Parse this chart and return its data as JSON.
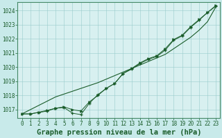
{
  "title": "Graphe pression niveau de la mer (hPa)",
  "background_color": "#c8eaea",
  "plot_bg_color": "#d8f0f0",
  "grid_color": "#98cccc",
  "line_color": "#1a5c2a",
  "x_labels": [
    "0",
    "1",
    "2",
    "3",
    "4",
    "5",
    "6",
    "7",
    "8",
    "9",
    "10",
    "11",
    "12",
    "13",
    "14",
    "15",
    "16",
    "17",
    "18",
    "19",
    "20",
    "21",
    "22",
    "23"
  ],
  "ylim": [
    1016.4,
    1024.6
  ],
  "yticks": [
    1017,
    1018,
    1019,
    1020,
    1021,
    1022,
    1023,
    1024
  ],
  "series_plus": [
    1016.7,
    1016.7,
    1016.8,
    1016.9,
    1017.1,
    1017.15,
    1016.75,
    1016.65,
    1017.45,
    1018.05,
    1018.5,
    1018.85,
    1019.55,
    1019.85,
    1020.25,
    1020.55,
    1020.75,
    1021.2,
    1021.9,
    1022.2,
    1022.8,
    1023.3,
    1023.85,
    1024.3
  ],
  "series_arrow": [
    1016.7,
    1016.7,
    1016.82,
    1016.95,
    1017.1,
    1017.2,
    1017.0,
    1016.9,
    1017.55,
    1018.0,
    1018.5,
    1018.85,
    1019.55,
    1019.9,
    1020.3,
    1020.6,
    1020.8,
    1021.3,
    1021.95,
    1022.25,
    1022.85,
    1023.35,
    1023.85,
    1024.35
  ],
  "series_smooth": [
    1016.7,
    1017.0,
    1017.3,
    1017.6,
    1017.9,
    1018.1,
    1018.3,
    1018.5,
    1018.7,
    1018.9,
    1019.15,
    1019.4,
    1019.65,
    1019.9,
    1020.15,
    1020.4,
    1020.65,
    1020.9,
    1021.3,
    1021.7,
    1022.1,
    1022.6,
    1023.2,
    1024.25
  ],
  "title_fontsize": 7.5,
  "tick_fontsize": 5.5
}
